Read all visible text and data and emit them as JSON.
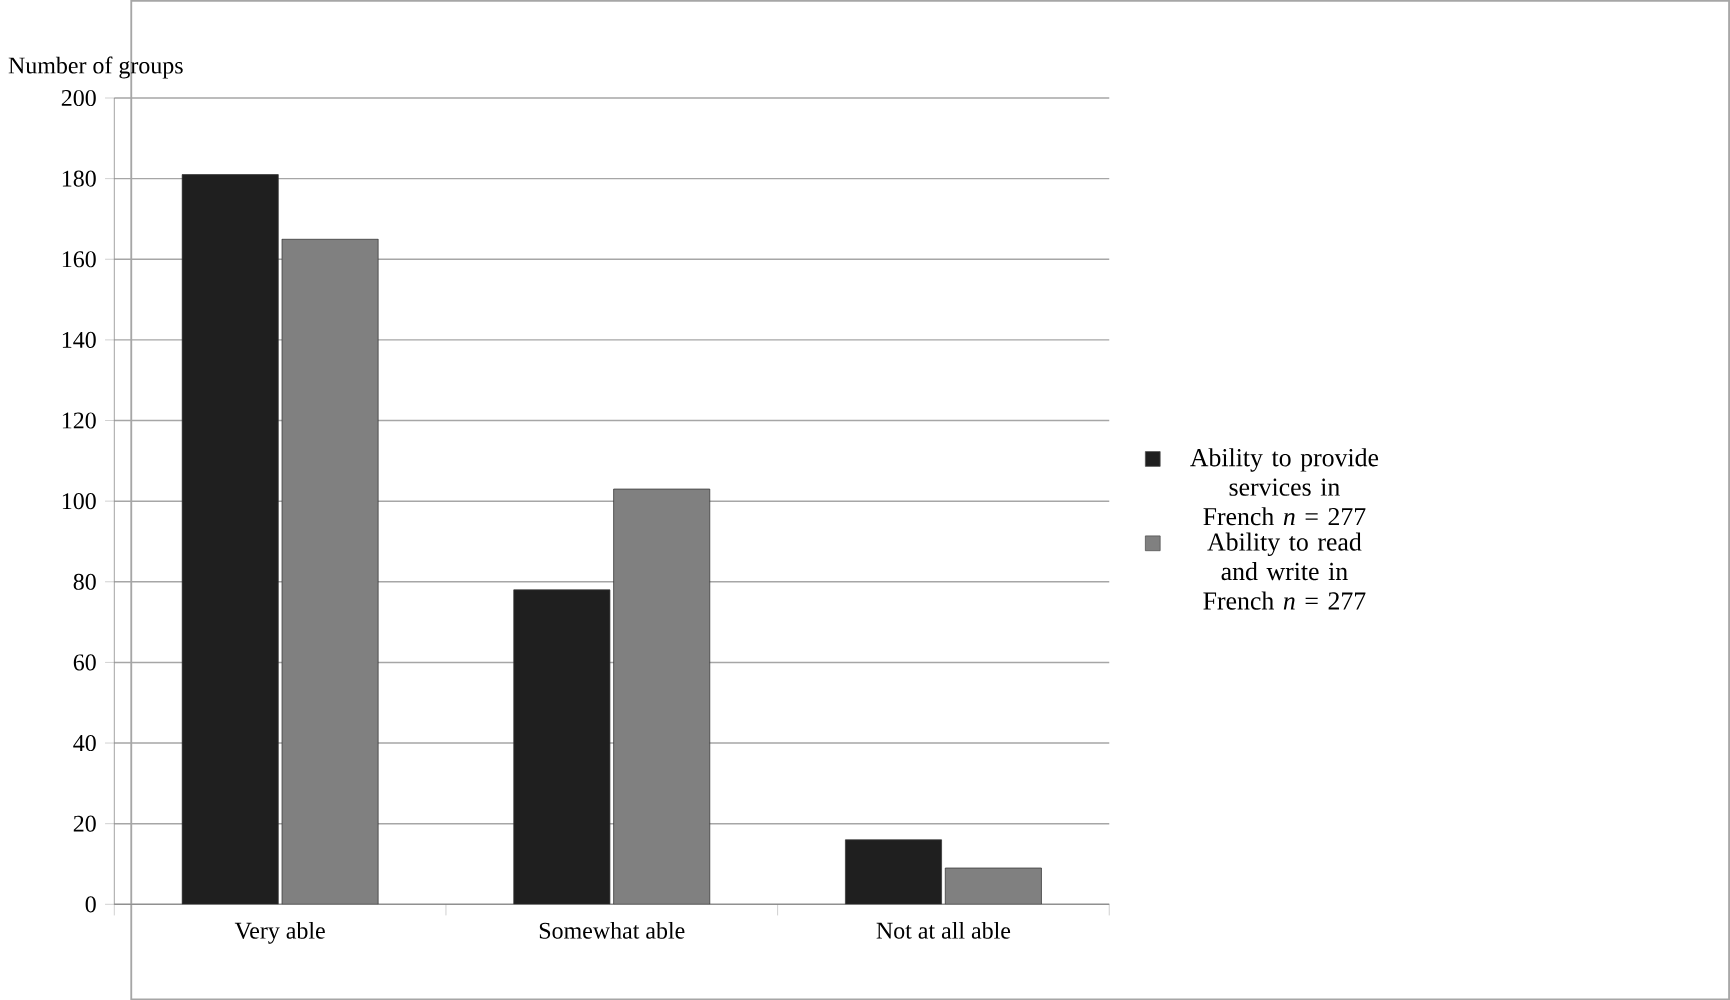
{
  "chart_data": {
    "type": "bar",
    "ylabel": "Number of groups",
    "categories": [
      "Very able",
      "Somewhat able",
      "Not at all able"
    ],
    "series": [
      {
        "name": "Ability to provide services in French *n* = 277",
        "color": "#1f1f1f",
        "values": [
          181,
          78,
          16
        ]
      },
      {
        "name": "Ability to read and write in French *n* = 277",
        "color": "#808080",
        "values": [
          165,
          103,
          9
        ]
      }
    ],
    "ylim": [
      0,
      200
    ],
    "yticks": [
      0,
      20,
      40,
      60,
      80,
      100,
      120,
      140,
      160,
      180,
      200
    ],
    "grid": "y",
    "legend": "right"
  }
}
